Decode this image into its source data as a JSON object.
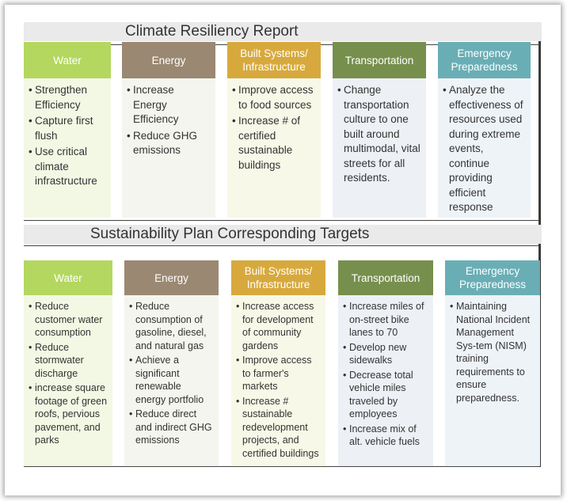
{
  "report_title": "Climate Resiliency Report",
  "targets_title": "Sustainability Plan Corresponding Targets",
  "report_columns": [
    {
      "title": "Water",
      "items": [
        "Strengthen Efficiency",
        "Capture first flush",
        "Use critical climate infrastructure"
      ]
    },
    {
      "title": "Energy",
      "items": [
        "Increase Energy Efficiency",
        "Reduce GHG emissions"
      ]
    },
    {
      "title": "Built Systems/ Infrastructure",
      "items": [
        "Improve access to food sources",
        "Increase # of certified sustainable buildings"
      ]
    },
    {
      "title": "Transportation",
      "items": [
        "Change transportation culture to one built around multimodal, vital streets for all residents."
      ]
    },
    {
      "title": "Emergency Preparedness",
      "items": [
        "Analyze the effectiveness of resources used during extreme events, continue providing efficient response"
      ]
    }
  ],
  "target_columns": [
    {
      "title": "Water",
      "items": [
        "Reduce customer water consumption",
        "Reduce stormwater discharge",
        "increase square footage of green roofs, pervious pavement, and parks"
      ]
    },
    {
      "title": "Energy",
      "items": [
        "Reduce consumption of gasoline, diesel, and natural gas",
        "Achieve a significant renewable energy portfolio",
        "Reduce direct and indirect GHG emissions"
      ]
    },
    {
      "title": "Built Systems/ Infrastructure",
      "items": [
        "Increase access for development of community gardens",
        "Improve access to farmer's markets",
        "Increase # sustainable redevelopment projects, and certified buildings"
      ]
    },
    {
      "title": "Transportation",
      "items": [
        "Increase miles of on-street bike lanes to 70",
        "Develop new sidewalks",
        "Decrease total vehicle miles traveled by employees",
        "Increase mix of alt. vehicle fuels"
      ]
    },
    {
      "title": "Emergency Preparedness",
      "items": [
        "Maintaining National Incident Management Sys-tem (NISM) training requirements to ensure preparedness."
      ]
    }
  ],
  "colors": {
    "water": "#b4d760",
    "energy": "#9a8872",
    "built": "#d7a93d",
    "transportation": "#778f4d",
    "emergency": "#6aaeb5"
  }
}
